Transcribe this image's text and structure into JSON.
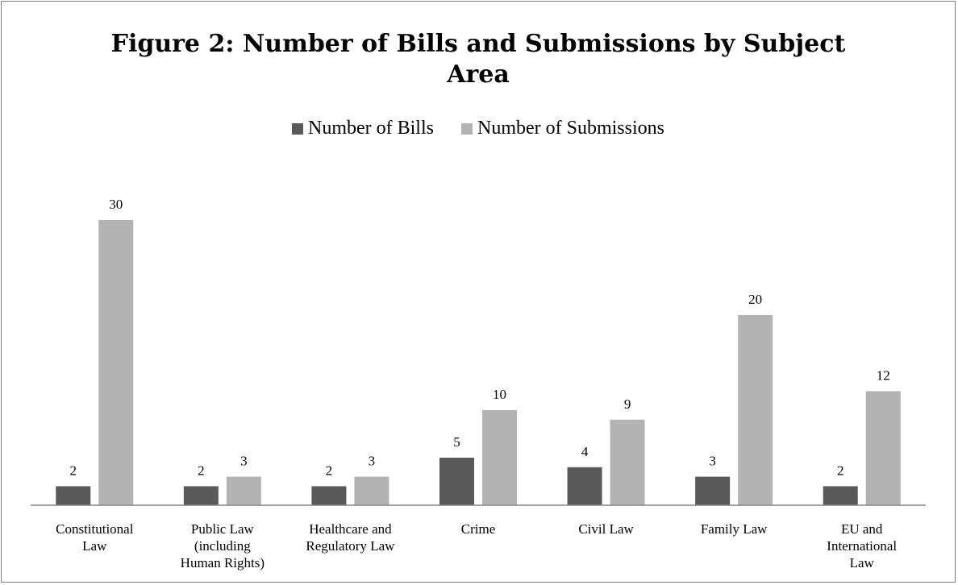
{
  "chart_data": {
    "type": "bar",
    "title": "Figure 2: Number of Bills and Submissions by Subject Area",
    "title_lines": [
      "Figure 2: Number of Bills and Submissions by Subject",
      "Area"
    ],
    "categories": [
      "Constitutional Law",
      "Public Law (including Human Rights)",
      "Healthcare and Regulatory Law",
      "Crime",
      "Civil Law",
      "Family Law",
      "EU and International Law"
    ],
    "category_lines": [
      [
        "Constitutional",
        "Law"
      ],
      [
        "Public Law",
        "(including",
        "Human Rights)"
      ],
      [
        "Healthcare and",
        "Regulatory Law"
      ],
      [
        "Crime"
      ],
      [
        "Civil Law"
      ],
      [
        "Family Law"
      ],
      [
        "EU and",
        "International",
        "Law"
      ]
    ],
    "series": [
      {
        "name": "Number of Bills",
        "values": [
          2,
          2,
          2,
          5,
          4,
          3,
          2
        ],
        "color": "#595959"
      },
      {
        "name": "Number of Submissions",
        "values": [
          30,
          3,
          3,
          10,
          9,
          20,
          12
        ],
        "color": "#b3b3b3"
      }
    ],
    "ylim": [
      0,
      30
    ],
    "grid": false,
    "legend": "top",
    "data_labels": true
  }
}
